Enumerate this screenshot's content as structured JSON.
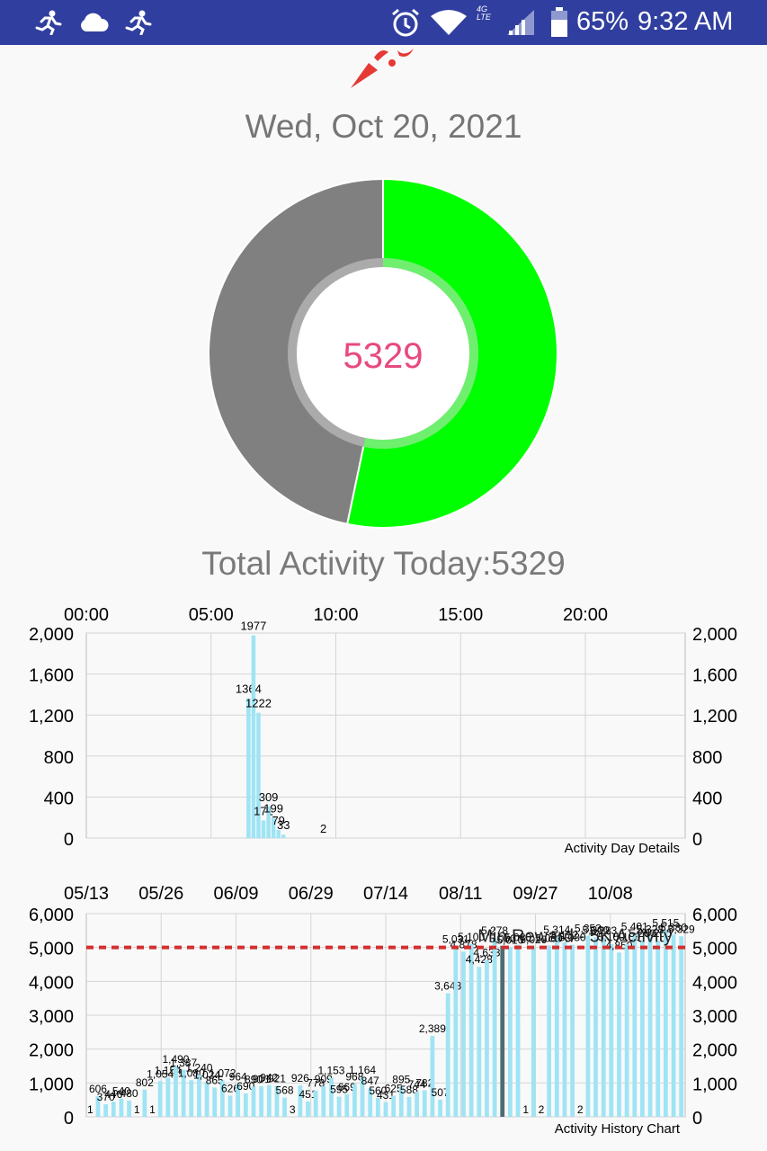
{
  "status_bar": {
    "battery": "65%",
    "time": "9:32 AM",
    "network": "4G LTE",
    "icons": [
      "running-icon",
      "cloud-icon",
      "running-icon",
      "alarm-icon",
      "wifi-icon",
      "signal-icon",
      "battery-icon"
    ]
  },
  "main": {
    "date": "Wed, Oct 20, 2021",
    "gauge_value": "5329",
    "total_label": "Total Activity Today:5329"
  },
  "colors": {
    "statusbar": "#303f9f",
    "progress": "#00ff00",
    "remaining": "#808080",
    "center_value": "#e8497f",
    "bar": "#9fe4f4",
    "threshold": "#d32f2f"
  },
  "chart_data": [
    {
      "type": "bar",
      "description_label": "Activity Day Details",
      "progress_fraction": 0.5329,
      "x_ticks": [
        "00:00",
        "05:00",
        "10:00",
        "15:00",
        "20:00"
      ],
      "y_ticks": [
        "0",
        "400",
        "800",
        "1,200",
        "1,600",
        "2,000"
      ],
      "ylim": [
        0,
        2000
      ],
      "xlim_hours": [
        0,
        24
      ],
      "bars": [
        {
          "hour": 6.5,
          "value": 1364,
          "label": "1364"
        },
        {
          "hour": 6.7,
          "value": 1977,
          "label": "1977"
        },
        {
          "hour": 6.9,
          "value": 1222,
          "label": "1222"
        },
        {
          "hour": 7.1,
          "value": 171,
          "label": "171"
        },
        {
          "hour": 7.3,
          "value": 309,
          "label": "309"
        },
        {
          "hour": 7.5,
          "value": 199,
          "label": "199"
        },
        {
          "hour": 7.7,
          "value": 79,
          "label": "79"
        },
        {
          "hour": 7.9,
          "value": 33,
          "label": "33"
        },
        {
          "hour": 9.5,
          "value": 2,
          "label": "2"
        }
      ]
    },
    {
      "type": "bar",
      "description_label": "Activity History Chart",
      "x_ticks": [
        "05/13",
        "05/26",
        "06/09",
        "06/29",
        "07/14",
        "08/11",
        "09/27",
        "10/08"
      ],
      "y_ticks": [
        "0",
        "1,000",
        "2,000",
        "3,000",
        "4,000",
        "5,000",
        "6,000"
      ],
      "ylim": [
        0,
        6000
      ],
      "threshold": {
        "value": 5000,
        "label": "Min Reward - 5K Activity"
      },
      "values": [
        1,
        606,
        370,
        446,
        540,
        480,
        1,
        802,
        1,
        1054,
        1154,
        1490,
        1387,
        1080,
        1240,
        1024,
        865,
        1072,
        626,
        964,
        690,
        890,
        901,
        942,
        921,
        568,
        3,
        926,
        451,
        778,
        909,
        1153,
        595,
        669,
        968,
        1164,
        847,
        560,
        431,
        625,
        895,
        588,
        744,
        782,
        2389,
        507,
        3648,
        5031,
        4878,
        5100,
        4428,
        4633,
        5278,
        5050,
        5010,
        5080,
        1,
        5020,
        2,
        5060,
        5314,
        5152,
        5080,
        2,
        5353,
        5300,
        5283,
        5100,
        4850,
        5100,
        5401,
        5200,
        5328,
        5200,
        5515,
        5380,
        5329
      ],
      "highlight_index": 53,
      "value_labels": [
        "1",
        "606",
        "370",
        "446",
        "540",
        "480",
        "1",
        "802",
        "1",
        "1,054",
        "1,154",
        "1,490",
        "1,387",
        "1,080",
        "1,240",
        "1,024",
        "865",
        "1,072",
        "626",
        "964",
        "690",
        "890",
        "901",
        "942",
        "921",
        "568",
        "3",
        "926",
        "451",
        "778",
        "909",
        "1,153",
        "595",
        "669",
        "968",
        "1,164",
        "847",
        "560",
        "431",
        "625",
        "895",
        "588",
        "744",
        "782",
        "2,389",
        "507",
        "3,648",
        "5,031",
        "4,878",
        "5,100",
        "4,428",
        "4,633",
        "5,278",
        "5,050",
        "5,010",
        "5,080",
        "1",
        "5,020",
        "2",
        "5,060",
        "5,314",
        "5,152",
        "5,080",
        "2",
        "5,353",
        "5,300",
        "5,283",
        "5,100",
        "4,850",
        "5,100",
        "5,401",
        "5,200",
        "5,328",
        "5,200",
        "5,515",
        "5,380",
        "5,329"
      ]
    }
  ]
}
